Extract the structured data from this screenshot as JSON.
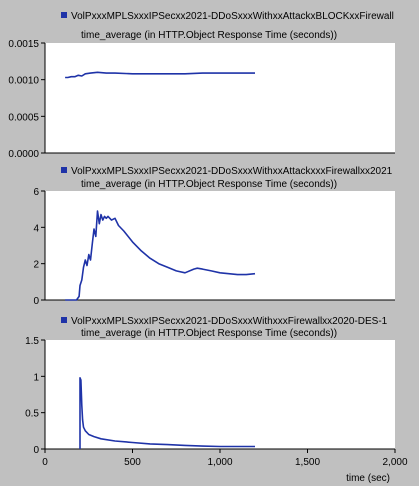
{
  "colors": {
    "background": "#c0c0c0",
    "plot": "#ffffff",
    "series": "#1f33a8"
  },
  "chart_data": [
    {
      "type": "line",
      "legend": "VolPxxxMPLSxxxIPSecxx2021-DDoSxxxWithxxAttackxBLOCKxxFirewall",
      "subtitle": "time_average (in HTTP.Object Response Time (seconds))",
      "ylim": [
        0,
        0.0015
      ],
      "yticks": [
        "0.0015",
        "0.0010",
        "0.0005",
        "0.0000"
      ],
      "ytick_values": [
        0.0015,
        0.001,
        0.0005,
        0
      ],
      "xlim": [
        0,
        2000
      ],
      "series": [
        {
          "x": [
            115,
            130,
            150,
            170,
            190,
            210,
            230,
            260,
            300,
            350,
            400,
            500,
            600,
            700,
            800,
            900,
            1000,
            1100,
            1200
          ],
          "y": [
            0.00103,
            0.00103,
            0.00104,
            0.00104,
            0.00106,
            0.00105,
            0.00108,
            0.00109,
            0.0011,
            0.00109,
            0.00109,
            0.00108,
            0.00108,
            0.00108,
            0.00108,
            0.00109,
            0.00109,
            0.00109,
            0.00109
          ]
        }
      ]
    },
    {
      "type": "line",
      "legend": "VolPxxxMPLSxxxIPSecxx2021-DDoSxxxWithxxAttackxxxFirewallxx2021",
      "subtitle": "time_average (in HTTP.Object Response Time (seconds))",
      "ylim": [
        0,
        6
      ],
      "yticks": [
        "6",
        "4",
        "2",
        "0"
      ],
      "ytick_values": [
        6,
        4,
        2,
        0
      ],
      "xlim": [
        0,
        2000
      ],
      "series": [
        {
          "x": [
            115,
            180,
            195,
            200,
            210,
            220,
            230,
            240,
            250,
            260,
            270,
            280,
            290,
            300,
            310,
            320,
            330,
            340,
            350,
            360,
            380,
            400,
            420,
            450,
            500,
            550,
            600,
            650,
            700,
            750,
            800,
            850,
            870,
            900,
            950,
            1000,
            1050,
            1100,
            1150,
            1200
          ],
          "y": [
            0,
            0,
            0.2,
            0.8,
            1.1,
            1.8,
            2.2,
            1.9,
            2.5,
            2.2,
            3.1,
            3.9,
            3.5,
            4.9,
            4.2,
            4.7,
            4.4,
            4.6,
            4.5,
            4.6,
            4.4,
            4.5,
            4.1,
            3.8,
            3.2,
            2.7,
            2.3,
            2.0,
            1.8,
            1.6,
            1.5,
            1.7,
            1.75,
            1.7,
            1.6,
            1.5,
            1.45,
            1.4,
            1.4,
            1.45
          ]
        }
      ]
    },
    {
      "type": "line",
      "legend": "VolPxxxMPLSxxxIPSecxx2021-DDoSxxxWithxxxFirewallxx2020-DES-1",
      "subtitle": "time_average (in HTTP.Object Response Time (seconds))",
      "ylim": [
        0,
        1.5
      ],
      "yticks": [
        "1.5",
        "1",
        "0.5",
        "0"
      ],
      "ytick_values": [
        1.5,
        1,
        0.5,
        0
      ],
      "xlim": [
        0,
        2000
      ],
      "xticks": [
        "0",
        "500",
        "1,000",
        "1,500",
        "2,000"
      ],
      "xtick_values": [
        0,
        500,
        1000,
        1500,
        2000
      ],
      "xlabel": "time (sec)",
      "series": [
        {
          "x": [
            200,
            200,
            205,
            210,
            215,
            220,
            230,
            250,
            280,
            320,
            400,
            500,
            600,
            700,
            800,
            900,
            1000,
            1100,
            1200
          ],
          "y": [
            0,
            0.98,
            0.95,
            0.6,
            0.4,
            0.3,
            0.25,
            0.2,
            0.17,
            0.14,
            0.11,
            0.09,
            0.07,
            0.06,
            0.05,
            0.04,
            0.035,
            0.035,
            0.035
          ]
        }
      ]
    }
  ]
}
